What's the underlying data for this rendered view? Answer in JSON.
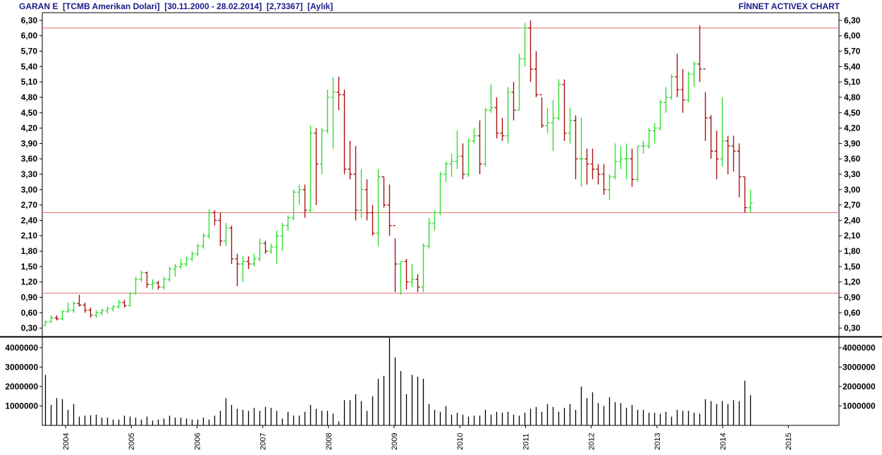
{
  "header": {
    "left": "GARAN E  [TCMB Amerikan Dolari]  [30.11.2000 - 28.02.2014]  [2,73367]  [Aylık]",
    "right": "FİNNET ACTIVEX CHART"
  },
  "chart_data": {
    "type": "ohlc",
    "frequency": "monthly",
    "price_axis": {
      "ylim": [
        0.15,
        6.45
      ],
      "ticks": [
        "6,30",
        "6,00",
        "5,70",
        "5,40",
        "5,10",
        "4,80",
        "4,50",
        "4,20",
        "3,90",
        "3,60",
        "3,30",
        "3,00",
        "2,70",
        "2,40",
        "2,10",
        "1,80",
        "1,50",
        "1,20",
        "0,90",
        "0,60",
        "0,30"
      ]
    },
    "reference_lines": [
      {
        "value": 6.15,
        "color": "#e87070"
      },
      {
        "value": 2.55,
        "color": "#e87070"
      },
      {
        "value": 0.98,
        "color": "#e87070"
      }
    ],
    "volume_axis": {
      "ylim": [
        0,
        4500000
      ],
      "ticks": [
        "4000000",
        "3000000",
        "2000000",
        "1000000"
      ]
    },
    "x_labels": [
      "2004",
      "2005",
      "2006",
      "2007",
      "2008",
      "2009",
      "2010",
      "2011",
      "2012",
      "2013",
      "2014",
      "2015"
    ],
    "colors": {
      "up": "#33dd33",
      "down": "#aa1111",
      "volume": "#000000",
      "grid": "#000000"
    },
    "bars": [
      [
        0.35,
        0.45,
        0.35,
        0.42,
        2600000
      ],
      [
        0.42,
        0.55,
        0.4,
        0.5,
        1050000
      ],
      [
        0.5,
        0.55,
        0.45,
        0.48,
        1400000
      ],
      [
        0.48,
        0.65,
        0.45,
        0.62,
        1350000
      ],
      [
        0.62,
        0.8,
        0.6,
        0.65,
        800000
      ],
      [
        0.65,
        0.82,
        0.6,
        0.78,
        1100000
      ],
      [
        0.78,
        0.95,
        0.72,
        0.75,
        450000
      ],
      [
        0.75,
        0.8,
        0.6,
        0.65,
        500000
      ],
      [
        0.65,
        0.7,
        0.5,
        0.55,
        520000
      ],
      [
        0.55,
        0.65,
        0.5,
        0.6,
        550000
      ],
      [
        0.6,
        0.68,
        0.55,
        0.64,
        400000
      ],
      [
        0.64,
        0.72,
        0.58,
        0.68,
        400000
      ],
      [
        0.68,
        0.75,
        0.62,
        0.72,
        300000
      ],
      [
        0.72,
        0.85,
        0.68,
        0.8,
        300000
      ],
      [
        0.8,
        0.85,
        0.7,
        0.74,
        500000
      ],
      [
        0.74,
        1.0,
        0.72,
        0.98,
        450000
      ],
      [
        0.98,
        1.3,
        0.95,
        1.25,
        400000
      ],
      [
        1.25,
        1.42,
        1.2,
        1.38,
        300000
      ],
      [
        1.38,
        1.4,
        1.08,
        1.15,
        450000
      ],
      [
        1.15,
        1.25,
        1.05,
        1.18,
        250000
      ],
      [
        1.18,
        1.22,
        1.05,
        1.1,
        300000
      ],
      [
        1.1,
        1.3,
        1.05,
        1.25,
        350000
      ],
      [
        1.25,
        1.5,
        1.2,
        1.45,
        500000
      ],
      [
        1.45,
        1.55,
        1.3,
        1.5,
        400000
      ],
      [
        1.5,
        1.65,
        1.45,
        1.55,
        400000
      ],
      [
        1.55,
        1.7,
        1.5,
        1.65,
        350000
      ],
      [
        1.65,
        1.8,
        1.6,
        1.75,
        300000
      ],
      [
        1.75,
        1.95,
        1.7,
        1.9,
        300000
      ],
      [
        1.9,
        2.15,
        1.85,
        2.1,
        400000
      ],
      [
        2.1,
        2.62,
        2.05,
        2.55,
        300000
      ],
      [
        2.55,
        2.6,
        2.3,
        2.4,
        500000
      ],
      [
        2.4,
        2.55,
        1.9,
        2.0,
        750000
      ],
      [
        2.0,
        2.35,
        1.9,
        2.25,
        1400000
      ],
      [
        2.25,
        2.3,
        1.55,
        1.65,
        1050000
      ],
      [
        1.65,
        1.75,
        1.12,
        1.55,
        850000
      ],
      [
        1.55,
        1.7,
        1.2,
        1.6,
        800000
      ],
      [
        1.6,
        1.7,
        1.45,
        1.55,
        750000
      ],
      [
        1.55,
        1.75,
        1.5,
        1.65,
        900000
      ],
      [
        1.65,
        2.05,
        1.6,
        1.95,
        750000
      ],
      [
        1.95,
        2.0,
        1.75,
        1.8,
        950000
      ],
      [
        1.8,
        1.95,
        1.75,
        1.88,
        900000
      ],
      [
        1.88,
        2.2,
        1.55,
        2.1,
        750000
      ],
      [
        2.1,
        2.35,
        1.8,
        2.3,
        350000
      ],
      [
        2.3,
        2.5,
        2.2,
        2.45,
        700000
      ],
      [
        2.45,
        3.0,
        2.4,
        2.95,
        500000
      ],
      [
        2.95,
        3.1,
        2.7,
        3.0,
        500000
      ],
      [
        3.0,
        3.1,
        2.45,
        2.6,
        700000
      ],
      [
        2.6,
        4.25,
        2.55,
        4.1,
        1050000
      ],
      [
        4.1,
        4.2,
        2.7,
        3.5,
        850000
      ],
      [
        3.5,
        4.2,
        3.3,
        4.15,
        750000
      ],
      [
        4.15,
        4.95,
        4.1,
        4.8,
        750000
      ],
      [
        4.8,
        5.2,
        3.8,
        4.9,
        600000
      ],
      [
        4.9,
        5.2,
        4.55,
        4.85,
        200000
      ],
      [
        4.85,
        4.95,
        3.3,
        3.4,
        1300000
      ],
      [
        3.4,
        3.95,
        3.2,
        3.3,
        1300000
      ],
      [
        3.3,
        3.85,
        2.4,
        2.6,
        1600000
      ],
      [
        2.6,
        3.4,
        2.45,
        3.0,
        1250000
      ],
      [
        3.0,
        3.2,
        2.4,
        2.55,
        750000
      ],
      [
        2.55,
        2.7,
        2.1,
        2.15,
        1500000
      ],
      [
        2.15,
        3.4,
        1.9,
        3.25,
        2400000
      ],
      [
        3.25,
        3.25,
        2.65,
        2.7,
        2550000
      ],
      [
        2.7,
        3.1,
        2.1,
        2.3,
        4500000
      ],
      [
        2.3,
        2.05,
        1.0,
        1.55,
        3500000
      ],
      [
        1.55,
        1.6,
        0.95,
        1.6,
        2800000
      ],
      [
        1.6,
        1.65,
        1.05,
        1.2,
        1600000
      ],
      [
        1.2,
        1.55,
        1.1,
        1.25,
        2600000
      ],
      [
        1.25,
        1.35,
        1.0,
        1.1,
        2500000
      ],
      [
        1.1,
        1.95,
        1.0,
        1.9,
        2400000
      ],
      [
        1.9,
        2.45,
        1.85,
        2.35,
        1100000
      ],
      [
        2.35,
        2.6,
        2.2,
        2.55,
        800000
      ],
      [
        2.55,
        3.35,
        2.5,
        3.3,
        700000
      ],
      [
        3.3,
        3.55,
        3.15,
        3.5,
        1000000
      ],
      [
        3.5,
        3.7,
        3.25,
        3.55,
        550000
      ],
      [
        3.55,
        4.15,
        3.4,
        3.65,
        650000
      ],
      [
        3.65,
        3.9,
        3.2,
        3.3,
        550000
      ],
      [
        3.3,
        4.0,
        3.25,
        3.95,
        450000
      ],
      [
        3.95,
        4.2,
        3.9,
        4.05,
        500000
      ],
      [
        4.05,
        4.35,
        3.3,
        3.5,
        500000
      ],
      [
        3.5,
        4.6,
        3.45,
        4.55,
        800000
      ],
      [
        4.55,
        5.05,
        4.5,
        4.6,
        550000
      ],
      [
        4.6,
        4.8,
        4.0,
        4.1,
        700000
      ],
      [
        4.1,
        4.4,
        3.95,
        4.05,
        650000
      ],
      [
        4.05,
        5.0,
        3.9,
        4.9,
        700000
      ],
      [
        4.9,
        5.1,
        4.35,
        4.55,
        550000
      ],
      [
        4.55,
        5.65,
        4.55,
        5.55,
        500000
      ],
      [
        5.55,
        6.25,
        5.4,
        6.15,
        650000
      ],
      [
        6.15,
        6.3,
        5.1,
        5.35,
        850000
      ],
      [
        5.35,
        5.7,
        4.8,
        4.85,
        950000
      ],
      [
        4.85,
        4.8,
        4.2,
        4.25,
        700000
      ],
      [
        4.25,
        4.6,
        4.1,
        4.3,
        1100000
      ],
      [
        4.3,
        4.75,
        3.75,
        4.4,
        950000
      ],
      [
        4.4,
        5.15,
        4.35,
        5.05,
        700000
      ],
      [
        5.05,
        5.15,
        3.95,
        4.1,
        900000
      ],
      [
        4.1,
        4.6,
        3.9,
        4.35,
        1100000
      ],
      [
        4.35,
        4.45,
        3.2,
        3.6,
        800000
      ],
      [
        3.6,
        4.4,
        3.05,
        3.6,
        2000000
      ],
      [
        3.6,
        3.8,
        3.1,
        3.5,
        1400000
      ],
      [
        3.5,
        3.8,
        3.2,
        3.4,
        1700000
      ],
      [
        3.4,
        3.5,
        3.1,
        3.3,
        1150000
      ],
      [
        3.3,
        3.5,
        2.9,
        3.0,
        1000000
      ],
      [
        3.0,
        3.3,
        2.8,
        3.25,
        1450000
      ],
      [
        3.25,
        3.9,
        3.2,
        3.55,
        1200000
      ],
      [
        3.55,
        3.85,
        3.4,
        3.6,
        1150000
      ],
      [
        3.6,
        3.9,
        3.2,
        3.6,
        900000
      ],
      [
        3.6,
        3.8,
        3.05,
        3.2,
        1050000
      ],
      [
        3.2,
        3.85,
        3.15,
        3.85,
        800000
      ],
      [
        3.85,
        3.95,
        3.7,
        3.85,
        800000
      ],
      [
        3.85,
        4.2,
        3.8,
        4.15,
        650000
      ],
      [
        4.15,
        4.3,
        3.9,
        4.2,
        650000
      ],
      [
        4.2,
        4.75,
        4.15,
        4.7,
        600000
      ],
      [
        4.7,
        5.0,
        4.5,
        4.8,
        700000
      ],
      [
        4.8,
        5.25,
        4.75,
        5.2,
        450000
      ],
      [
        5.2,
        5.65,
        4.8,
        4.95,
        800000
      ],
      [
        4.95,
        5.35,
        4.5,
        4.75,
        750000
      ],
      [
        4.75,
        5.3,
        4.7,
        5.25,
        750000
      ],
      [
        5.25,
        5.5,
        5.0,
        5.45,
        650000
      ],
      [
        5.45,
        6.2,
        5.1,
        5.35,
        600000
      ],
      [
        5.35,
        4.9,
        3.95,
        4.4,
        1350000
      ],
      [
        4.4,
        4.45,
        3.6,
        3.75,
        1250000
      ],
      [
        3.75,
        4.15,
        3.2,
        3.6,
        1100000
      ],
      [
        3.6,
        4.8,
        3.45,
        3.95,
        1250000
      ],
      [
        3.95,
        4.05,
        3.3,
        3.85,
        1100000
      ],
      [
        3.85,
        4.05,
        3.35,
        3.75,
        1300000
      ],
      [
        3.75,
        3.9,
        2.85,
        3.25,
        1250000
      ],
      [
        3.25,
        3.25,
        2.55,
        2.65,
        2300000
      ],
      [
        2.65,
        3.0,
        2.55,
        2.74,
        1550000
      ]
    ]
  }
}
